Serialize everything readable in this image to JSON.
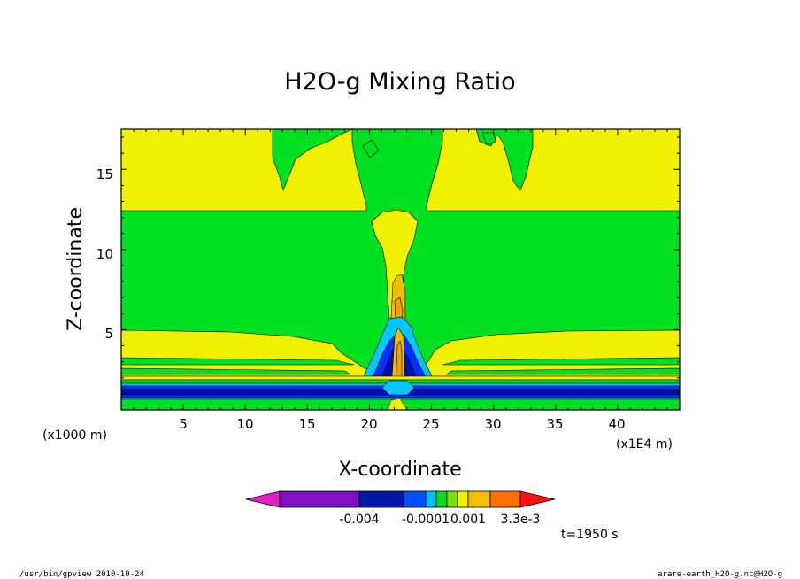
{
  "chart_data": {
    "type": "contour",
    "title": "H2O-g Mixing Ratio",
    "xlabel": "X-coordinate",
    "ylabel": "Z-coordinate",
    "x_unit": "(x1E4 m)",
    "y_unit": "(x1000 m)",
    "xlim": [
      0,
      45
    ],
    "ylim": [
      0,
      17.5
    ],
    "x_ticks": [
      "5",
      "10",
      "15",
      "20",
      "25",
      "30",
      "35",
      "40"
    ],
    "y_ticks": [
      "5",
      "10",
      "15"
    ],
    "time_label": "t=1950 s",
    "colorbar": {
      "labels": [
        "-0.004",
        "-0.0001",
        "0.001",
        "3.3e-3"
      ],
      "colors": [
        "#e020c0",
        "#8010c0",
        "#0018a8",
        "#0050ff",
        "#00c0ff",
        "#00e020",
        "#80e000",
        "#f0f000",
        "#f0c000",
        "#ff9000",
        "#ff5000",
        "#ff1010"
      ]
    },
    "colors": {
      "green": "#00e020",
      "yellow": "#f0f000",
      "light_yellow": "#f5f560",
      "orange": "#f0a000",
      "dark_orange": "#d07000",
      "cyan": "#00c8ff",
      "blue": "#0030ff",
      "dark_blue": "#0010b0"
    }
  },
  "footer": {
    "left": "/usr/bin/gpview   2010-10-24",
    "right": "arare-earth_H2O-g.nc@H2O-g"
  }
}
